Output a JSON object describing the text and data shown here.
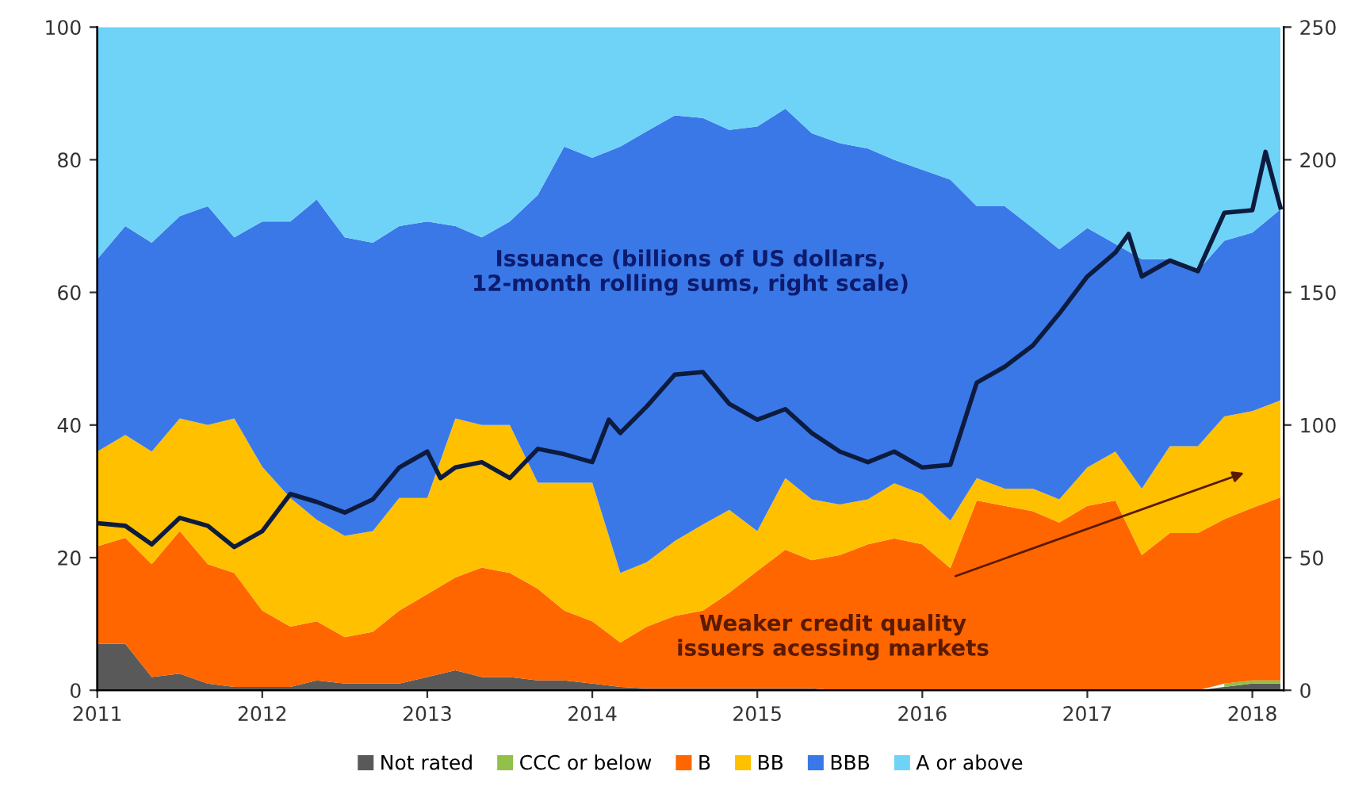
{
  "chart_data": {
    "type": "area",
    "stacked": true,
    "x": [
      2011.0,
      2011.17,
      2011.33,
      2011.5,
      2011.67,
      2011.83,
      2012.0,
      2012.17,
      2012.33,
      2012.5,
      2012.67,
      2012.83,
      2013.0,
      2013.17,
      2013.33,
      2013.5,
      2013.67,
      2013.83,
      2014.0,
      2014.17,
      2014.33,
      2014.5,
      2014.67,
      2014.83,
      2015.0,
      2015.17,
      2015.33,
      2015.5,
      2015.67,
      2015.83,
      2016.0,
      2016.17,
      2016.33,
      2016.5,
      2016.67,
      2016.83,
      2017.0,
      2017.17,
      2017.33,
      2017.5,
      2017.67,
      2017.83,
      2018.0,
      2018.17
    ],
    "series": [
      {
        "name": "Not rated",
        "color": "#595959",
        "values": [
          7,
          7,
          2,
          2.5,
          1,
          0.5,
          0.5,
          0.5,
          1.5,
          1,
          1,
          1,
          2,
          3,
          2,
          2,
          1.5,
          1.5,
          1,
          0.5,
          0.3,
          0.3,
          0.3,
          0.3,
          0.3,
          0.3,
          0.3,
          0,
          0,
          0,
          0,
          0,
          0,
          0,
          0,
          0,
          0,
          0,
          0,
          0,
          0,
          0.5,
          1,
          1
        ]
      },
      {
        "name": "CCC or below",
        "color": "#92c04a",
        "values": [
          null,
          null,
          null,
          null,
          null,
          null,
          null,
          null,
          null,
          null,
          null,
          null,
          null,
          null,
          null,
          null,
          null,
          null,
          null,
          null,
          null,
          null,
          null,
          null,
          null,
          null,
          null,
          null,
          null,
          null,
          null,
          null,
          null,
          null,
          null,
          null,
          null,
          null,
          null,
          null,
          null,
          0.5,
          0.5,
          0.5
        ]
      },
      {
        "name": "B",
        "color": "#ff6600",
        "values": [
          14.7,
          16,
          17,
          21.5,
          18,
          17.2,
          11.5,
          9.1,
          8.9,
          7,
          7.8,
          11,
          12.5,
          14,
          16.5,
          15.7,
          13.8,
          10.5,
          9.4,
          6.7,
          9.3,
          10.9,
          11.7,
          14.4,
          17.7,
          20.9,
          19.3,
          20.4,
          22,
          22.9,
          22,
          18.4,
          28.6,
          27.8,
          27,
          25.3,
          27.8,
          28.6,
          20.4,
          23.7,
          23.7,
          24.8,
          26,
          27.6
        ]
      },
      {
        "name": "BB",
        "color": "#ffc000",
        "values": [
          14.3,
          15.5,
          17,
          17,
          21,
          23.3,
          21.7,
          19.4,
          15.3,
          15.3,
          15.2,
          17,
          14.5,
          24,
          21.5,
          22.3,
          16,
          19.3,
          20.9,
          10.5,
          9.7,
          11.3,
          13,
          12.5,
          6,
          10.8,
          9.2,
          7.6,
          6.8,
          8.3,
          7.6,
          7.2,
          3.4,
          2.6,
          3.4,
          3.5,
          5.8,
          7.4,
          10,
          13.1,
          13.1,
          15.5,
          14.6,
          14.6
        ]
      },
      {
        "name": "BBB",
        "color": "#3a78e8",
        "values": [
          29,
          31.5,
          31.5,
          30.5,
          33,
          27.3,
          37,
          41.7,
          48.3,
          45,
          43.5,
          41,
          41.7,
          29,
          28.3,
          30.7,
          43.4,
          50.7,
          49,
          64.3,
          65,
          64.2,
          61.3,
          57.3,
          61,
          55.7,
          55.2,
          54.5,
          52.9,
          48.8,
          48.9,
          51.4,
          41,
          42.6,
          39.3,
          37.7,
          36.1,
          31.3,
          34.6,
          28.2,
          26.5,
          26.5,
          26.9,
          28.8
        ]
      },
      {
        "name": "A or above",
        "color": "#6fd3f7",
        "values": [
          35,
          30,
          32.5,
          28.5,
          27,
          31.7,
          29.3,
          29.3,
          26,
          31.7,
          32.5,
          30,
          29.3,
          30,
          31.7,
          29.3,
          25.3,
          18,
          19.7,
          18,
          15.7,
          13.3,
          13.7,
          15.5,
          15,
          12.3,
          16,
          17.5,
          18.3,
          20,
          21.5,
          23,
          27,
          27,
          30.3,
          33.5,
          30.3,
          32.7,
          35,
          35,
          36.7,
          32.2,
          31,
          27.5
        ]
      },
      {
        "type": "line",
        "axis": "y2",
        "color": "#0d1b3e",
        "x": [
          2011.0,
          2011.17,
          2011.33,
          2011.5,
          2011.67,
          2011.83,
          2012.0,
          2012.17,
          2012.33,
          2012.5,
          2012.67,
          2012.83,
          2013.0,
          2013.08,
          2013.17,
          2013.33,
          2013.5,
          2013.67,
          2013.83,
          2014.0,
          2014.1,
          2014.17,
          2014.33,
          2014.5,
          2014.67,
          2014.83,
          2015.0,
          2015.17,
          2015.33,
          2015.5,
          2015.67,
          2015.83,
          2016.0,
          2016.17,
          2016.33,
          2016.5,
          2016.67,
          2016.83,
          2017.0,
          2017.17,
          2017.25,
          2017.33,
          2017.5,
          2017.67,
          2017.83,
          2018.0,
          2018.08,
          2018.17
        ],
        "values": [
          63,
          62,
          55,
          65,
          62,
          54,
          60,
          74,
          71,
          67,
          72,
          84,
          90,
          80,
          84,
          86,
          80,
          91,
          89,
          86,
          102,
          97,
          107,
          119,
          120,
          108,
          102,
          106,
          97,
          90,
          86,
          90,
          84,
          85,
          116,
          122,
          130,
          142,
          156,
          165,
          172,
          156,
          162,
          158,
          180,
          181,
          203,
          182
        ]
      }
    ],
    "xlim": [
      2011,
      2018.19
    ],
    "xticks": [
      2011,
      2012,
      2013,
      2014,
      2015,
      2016,
      2017,
      2018
    ],
    "ylim": [
      0,
      100
    ],
    "yticks": [
      0,
      20,
      40,
      60,
      80,
      100
    ],
    "y2lim": [
      0,
      250
    ],
    "y2ticks": [
      0,
      50,
      100,
      150,
      200,
      250
    ],
    "grid": false,
    "legend": "bottom",
    "annotations": [
      "Issuance (billions of US dollars,\n12-month rolling sums, right scale)",
      "Weaker credit quality\nissuers acessing markets"
    ]
  }
}
